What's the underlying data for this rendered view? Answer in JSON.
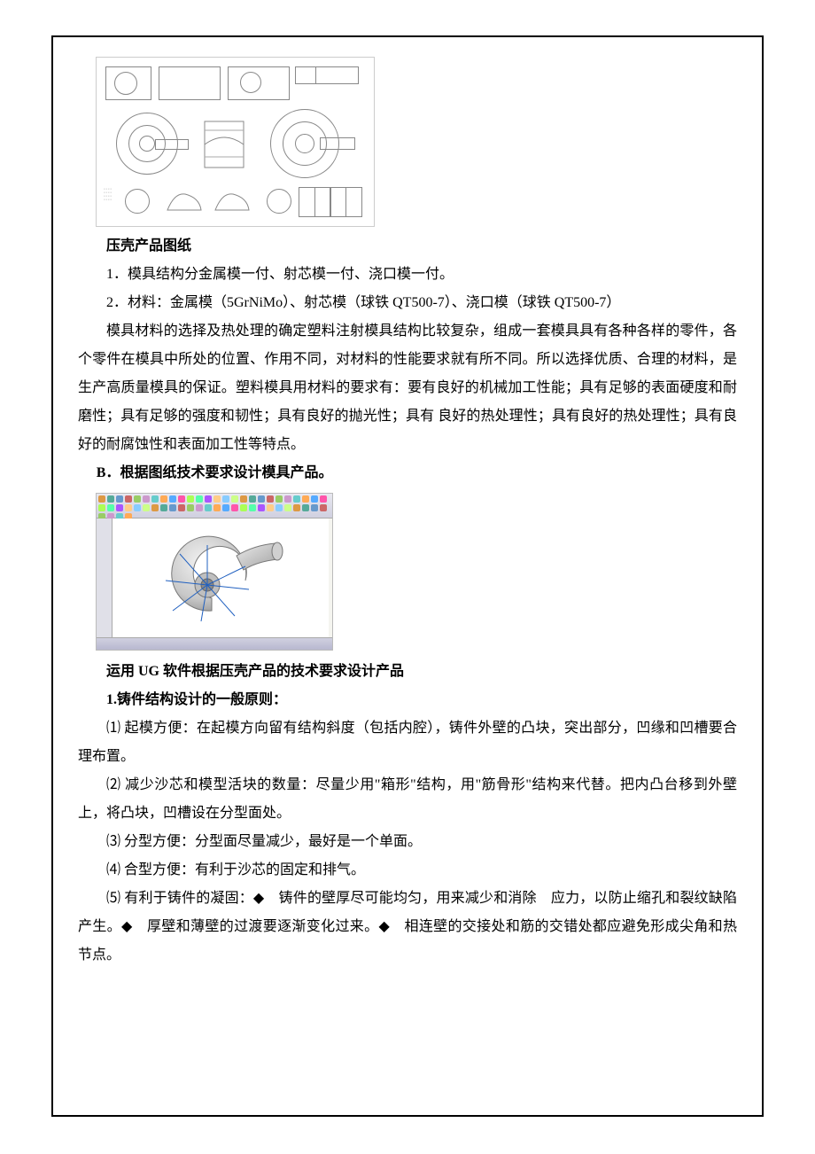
{
  "drawing_caption": "压壳产品图纸",
  "list1": {
    "item1": "1．模具结构分金属模一付、射芯模一付、浇口模一付。",
    "item2": "2．材料：金属模（5GrNiMo）、射芯模（球铁 QT500-7）、浇口模（球铁 QT500-7）"
  },
  "material_para": "模具材料的选择及热处理的确定塑料注射模具结构比较复杂，组成一套模具具有各种各样的零件，各个零件在模具中所处的位置、作用不同，对材料的性能要求就有所不同。所以选择优质、合理的材料，是生产高质量模具的保证。塑料模具用材料的要求有：要有良好的机械加工性能；具有足够的表面硬度和耐磨性；具有足够的强度和韧性；具有良好的抛光性；具有 良好的热处理性；具有良好的热处理性；具有良好的耐腐蚀性和表面加工性等特点。",
  "section_b": "B．根据图纸技术要求设计模具产品。",
  "ug_caption": "运用 UG 软件根据压壳产品的技术要求设计产品",
  "principle_heading": "1.铸件结构设计的一般原则：",
  "principles": {
    "p1": "⑴ 起模方便：在起模方向留有结构斜度（包括内腔），铸件外壁的凸块，突出部分，凹缘和凹槽要合理布置。",
    "p2_a": "⑵ 减少沙芯和模型活块的数量：尽量少用",
    "p2_b": "\"箱形\"",
    "p2_c": "结构，用",
    "p2_d": "\"筋骨形\"",
    "p2_e": "结构来代替。把内凸台移到外壁上，将凸块，凹槽设在分型面处。",
    "p3": "⑶ 分型方便：分型面尽量减少，最好是一个单面。",
    "p4": "⑷ 合型方便：有利于沙芯的固定和排气。",
    "p5_a": "⑸ 有利于铸件的凝固：",
    "p5_b": "铸件的壁厚尽可能均匀，用来减少和消除　应力，以防止缩孔和裂纹缺陷产生。",
    "p5_c": "厚壁和薄壁的过渡要逐渐变化过来。",
    "p5_d": "相连壁的交接处和筋的交错处都应避免形成尖角和热节点。"
  },
  "bullet": "◆",
  "colors": {
    "frame": "#000000",
    "text": "#000000",
    "image_border": "#cccccc"
  },
  "ug_icon_colors": [
    "#d94",
    "#5a9",
    "#69c",
    "#c66",
    "#9c6",
    "#c9c",
    "#6cc",
    "#fa5",
    "#5af",
    "#f5a",
    "#af5",
    "#5fa",
    "#a5f",
    "#fc8",
    "#8cf",
    "#cf8"
  ]
}
